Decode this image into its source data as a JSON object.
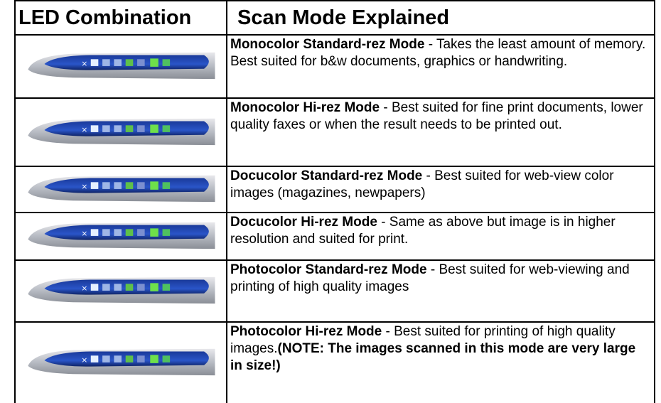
{
  "header": {
    "left": "LED Combination",
    "right": "Scan Mode Explained"
  },
  "rows": [
    {
      "mode": "Monocolor Standard-rez Mode",
      "description": "- Takes the least amount of memory. Best suited for b&w documents, graphics or handwriting."
    },
    {
      "mode": "Monocolor Hi-rez Mode",
      "description": "- Best suited for fine print documents, lower quality faxes or when the result needs to be printed out."
    },
    {
      "mode": "Docucolor Standard-rez Mode",
      "description": "- Best suited for web-view color images (magazines, newpapers)"
    },
    {
      "mode": "Docucolor Hi-rez Mode",
      "description": "- Same as above but image is in higher resolution and suited for print."
    },
    {
      "mode": "Photocolor Standard-rez Mode",
      "description": "- Best suited for web-viewing and printing of high quality images"
    },
    {
      "mode": "Photocolor Hi-rez Mode",
      "description": "- Best suited for printing of high quality images.",
      "note": "(NOTE: The images scanned in this mode are very large in size!)"
    }
  ]
}
